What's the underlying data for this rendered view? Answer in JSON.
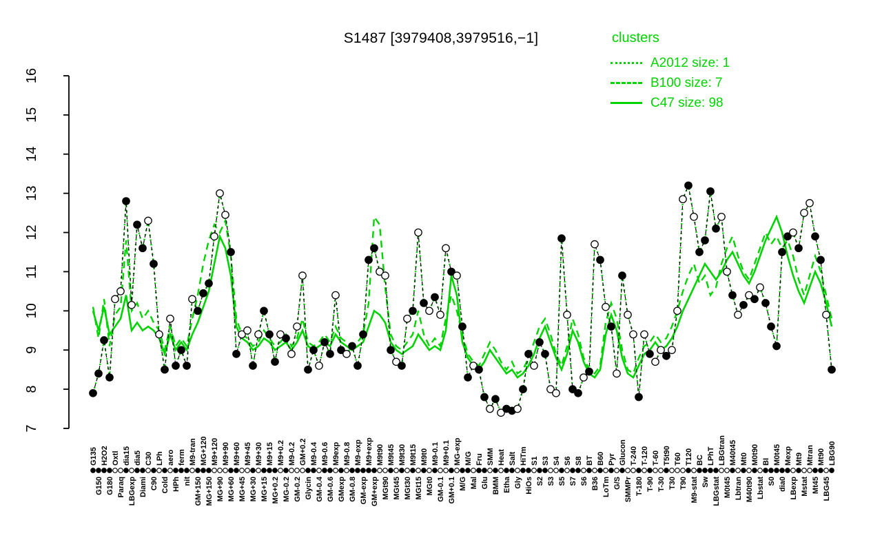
{
  "title": "S1487 [3979408,3979516,−1]",
  "legend": {
    "heading": "clusters",
    "entries": [
      {
        "name": "A2012",
        "label": "A2012 size: 1",
        "line_style": "dotted",
        "size": 1
      },
      {
        "name": "B100",
        "label": "B100 size: 7",
        "line_style": "dashed",
        "size": 7
      },
      {
        "name": "C47",
        "label": "C47 size: 98",
        "line_style": "solid",
        "size": 98
      }
    ]
  },
  "colors": {
    "cluster": "#00d300",
    "point_fill": "#000000",
    "point_open": "#ffffff",
    "axis": "#000000",
    "background": "#ffffff"
  },
  "chart_data": {
    "type": "line",
    "title": "S1487 [3979408,3979516,−1]",
    "xlabel": "",
    "ylabel": "",
    "ylim": [
      7,
      16
    ],
    "yticks": [
      7,
      8,
      9,
      10,
      11,
      12,
      13,
      14,
      15,
      16
    ],
    "grid": false,
    "legend_position": "top-right",
    "categories": [
      "G135",
      "G150",
      "H2O2",
      "G180",
      "Oxtl",
      "Paraq",
      "dia15",
      "LBGexp",
      "dia5",
      "Diami",
      "C30",
      "C90",
      "LPh",
      "Cold",
      "aero",
      "HPh",
      "ferm",
      "nit",
      "M9-tran",
      "GM+150",
      "MG+120",
      "MG+150",
      "M9+120",
      "MG+90",
      "M9+90",
      "MG+60",
      "M9+60",
      "MG+45",
      "M9+45",
      "MG+30",
      "M9+30",
      "MG+15",
      "M9+15",
      "MG+0.2",
      "M9+0.2",
      "MG-0.2",
      "M9-0.2",
      "GM-0.2",
      "GM+0.2",
      "Glycin",
      "M9-0.4",
      "GM-0.4",
      "M9-0.6",
      "GM-0.6",
      "M9exp",
      "GMexp",
      "M9-0.8",
      "GM-0.8",
      "M9-exp",
      "GM-exp",
      "M9+exp",
      "GM+exp",
      "M9t90",
      "MGt90",
      "M9t45",
      "MGt45",
      "M9t30",
      "MGt30",
      "M9t15",
      "MGt15",
      "M9t0",
      "MGt0",
      "M9-0.1",
      "GM-0.1",
      "M9+0.1",
      "GM+0.1",
      "MG-exp",
      "M/G",
      "M/G",
      "Mal",
      "Fru",
      "Glu",
      "SMM",
      "BMM",
      "Heat",
      "Etha",
      "Salt",
      "Gly",
      "HiTm",
      "HiOs",
      "S1",
      "S2",
      "S3",
      "S3",
      "S4",
      "S5",
      "S6",
      "S7",
      "S8",
      "S6",
      "BT",
      "B36",
      "B60",
      "LoTm",
      "Pyr",
      "G/S",
      "Glucon",
      "SMMPr",
      "T-240",
      "T-180",
      "T-120",
      "T-90",
      "T-60",
      "T-30",
      "T5t90",
      "T30",
      "T60",
      "T90",
      "T120",
      "M9-stat",
      "BC",
      "Sw",
      "LPhT",
      "LBGstat",
      "LBGtran",
      "M0t45",
      "M40t45",
      "Lbtran",
      "Mt0",
      "M40t90",
      "M0t90",
      "Lbstat",
      "BI",
      "S0",
      "M0t45",
      "dia0",
      "Mexp",
      "LBexp",
      "Mt9",
      "Mstat",
      "Mtran",
      "Mt45",
      "Mt90",
      "LBG45",
      "LBG90"
    ],
    "marker_filled": [
      1,
      1,
      1,
      1,
      0,
      0,
      1,
      0,
      1,
      1,
      0,
      1,
      0,
      1,
      0,
      1,
      1,
      1,
      0,
      1,
      1,
      1,
      0,
      0,
      0,
      1,
      1,
      0,
      0,
      1,
      0,
      1,
      1,
      1,
      0,
      1,
      0,
      0,
      0,
      1,
      1,
      0,
      1,
      1,
      0,
      1,
      0,
      1,
      1,
      1,
      1,
      1,
      0,
      0,
      1,
      0,
      1,
      0,
      1,
      0,
      1,
      0,
      1,
      0,
      0,
      1,
      0,
      1,
      1,
      0,
      1,
      1,
      0,
      1,
      0,
      1,
      1,
      0,
      1,
      1,
      0,
      1,
      1,
      0,
      0,
      1,
      0,
      1,
      1,
      0,
      1,
      0,
      1,
      0,
      1,
      0,
      1,
      0,
      0,
      1,
      0,
      1,
      0,
      0,
      1,
      0,
      0,
      0,
      1,
      0,
      1,
      1,
      1,
      1,
      0,
      0,
      1,
      0,
      1,
      0,
      1,
      0,
      1,
      1,
      1,
      1,
      1,
      0,
      1,
      0,
      0,
      1,
      1,
      0,
      1
    ],
    "series": [
      {
        "name": "gene_profile",
        "color": "#000000",
        "style": "dashed-with-markers",
        "values": [
          7.9,
          8.4,
          9.25,
          8.3,
          10.3,
          10.5,
          12.8,
          10.15,
          12.2,
          11.6,
          12.3,
          11.2,
          9.4,
          8.5,
          9.8,
          8.6,
          9.0,
          8.6,
          10.3,
          10.0,
          10.45,
          10.7,
          11.9,
          13.0,
          12.45,
          11.5,
          8.9,
          9.4,
          9.5,
          8.6,
          9.4,
          10.0,
          9.4,
          8.7,
          9.4,
          9.3,
          8.9,
          9.6,
          10.9,
          8.5,
          9.0,
          8.6,
          9.2,
          8.9,
          10.4,
          9.0,
          8.9,
          9.1,
          8.6,
          9.4,
          11.3,
          11.6,
          11.0,
          10.9,
          9.0,
          8.7,
          8.6,
          9.8,
          10.0,
          12.0,
          10.2,
          10.0,
          10.35,
          9.9,
          11.6,
          11.0,
          10.9,
          9.6,
          8.3,
          8.6,
          8.5,
          7.8,
          7.5,
          7.75,
          7.4,
          7.5,
          7.45,
          7.5,
          8.0,
          8.9,
          8.6,
          9.2,
          8.9,
          8.0,
          7.9,
          11.85,
          9.9,
          8.0,
          7.9,
          8.3,
          8.45,
          11.7,
          11.3,
          10.1,
          9.6,
          8.4,
          10.9,
          9.9,
          9.4,
          7.8,
          9.4,
          8.9,
          8.7,
          9.0,
          8.85,
          9.0,
          10.0,
          12.85,
          13.2,
          12.4,
          11.5,
          11.8,
          13.05,
          12.1,
          12.4,
          11.0,
          10.4,
          9.9,
          10.15,
          10.4,
          10.3,
          10.6,
          10.2,
          9.6,
          9.1,
          11.5,
          11.9,
          12.0,
          11.6,
          12.5,
          12.75,
          11.9,
          11.3,
          9.9,
          8.5
        ]
      },
      {
        "name": "A2012",
        "color": "#00d300",
        "style": "dotted",
        "size": 1,
        "values_same_as": "gene_profile"
      },
      {
        "name": "B100",
        "color": "#00d300",
        "style": "dashed",
        "size": 7,
        "values": [
          10.1,
          9.3,
          10.3,
          9.1,
          9.9,
          10.1,
          11.8,
          10.0,
          10.2,
          9.8,
          10.0,
          9.7,
          9.5,
          9.0,
          9.6,
          9.1,
          9.3,
          9.1,
          9.8,
          10.4,
          11.2,
          11.8,
          12.2,
          12.0,
          12.3,
          11.4,
          9.8,
          9.4,
          9.3,
          9.1,
          9.2,
          9.5,
          9.3,
          9.1,
          9.2,
          9.4,
          9.1,
          9.3,
          9.8,
          9.2,
          9.1,
          9.2,
          9.4,
          9.2,
          9.6,
          9.3,
          9.2,
          9.1,
          9.2,
          9.4,
          10.2,
          12.4,
          12.2,
          10.6,
          9.4,
          9.1,
          9.0,
          9.2,
          9.4,
          10.0,
          9.4,
          9.1,
          9.3,
          9.1,
          9.8,
          10.4,
          10.0,
          9.4,
          8.9,
          8.7,
          8.6,
          8.9,
          9.2,
          9.0,
          8.7,
          8.5,
          8.7,
          8.4,
          8.5,
          8.8,
          9.2,
          9.6,
          9.8,
          9.4,
          8.9,
          8.6,
          9.1,
          9.8,
          9.4,
          8.8,
          8.5,
          8.4,
          8.6,
          9.7,
          10.2,
          9.8,
          9.0,
          8.5,
          8.4,
          8.8,
          9.1,
          9.2,
          9.4,
          9.2,
          9.3,
          9.6,
          10.0,
          10.5,
          10.9,
          11.2,
          10.7,
          10.9,
          10.4,
          10.6,
          11.2,
          11.6,
          11.9,
          11.4,
          11.0,
          10.8,
          11.2,
          11.6,
          12.0,
          11.7,
          11.9,
          11.6,
          11.8,
          11.4,
          10.8,
          10.4,
          10.9,
          11.4,
          11.0,
          10.4,
          9.8
        ]
      },
      {
        "name": "C47",
        "color": "#00d300",
        "style": "solid",
        "size": 98,
        "values": [
          10.0,
          9.5,
          10.1,
          9.4,
          9.6,
          9.8,
          10.4,
          9.5,
          9.7,
          9.5,
          9.6,
          9.5,
          9.3,
          8.9,
          9.4,
          9.0,
          9.2,
          9.0,
          9.4,
          9.7,
          10.1,
          10.5,
          11.2,
          11.9,
          11.6,
          10.9,
          9.6,
          9.3,
          9.2,
          9.0,
          9.1,
          9.3,
          9.2,
          9.0,
          9.1,
          9.2,
          9.0,
          9.2,
          9.5,
          9.1,
          9.0,
          9.1,
          9.2,
          9.1,
          9.4,
          9.2,
          9.1,
          9.0,
          9.1,
          9.2,
          9.6,
          10.0,
          9.9,
          9.7,
          9.2,
          9.0,
          8.9,
          9.0,
          9.1,
          9.4,
          9.2,
          9.0,
          9.1,
          9.0,
          9.5,
          10.9,
          10.4,
          9.2,
          8.8,
          8.6,
          8.5,
          8.7,
          9.0,
          8.8,
          8.6,
          8.4,
          8.5,
          8.3,
          8.4,
          8.6,
          8.9,
          9.3,
          9.6,
          9.2,
          8.8,
          8.5,
          8.9,
          9.5,
          9.2,
          8.7,
          8.4,
          8.3,
          8.5,
          9.4,
          9.9,
          9.5,
          8.8,
          8.4,
          8.3,
          8.6,
          8.9,
          9.0,
          9.2,
          9.0,
          9.1,
          9.3,
          9.6,
          10.0,
          10.3,
          10.6,
          10.9,
          11.2,
          11.0,
          10.8,
          11.0,
          11.3,
          11.5,
          11.2,
          10.9,
          10.7,
          11.0,
          11.4,
          11.8,
          12.1,
          12.4,
          12.0,
          11.4,
          10.9,
          10.5,
          10.2,
          10.6,
          11.0,
          10.7,
          10.2,
          9.6
        ]
      }
    ]
  }
}
